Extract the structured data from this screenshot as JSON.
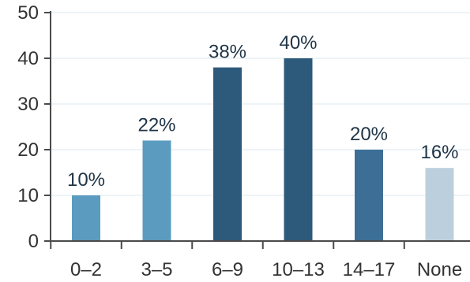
{
  "chart_data": {
    "type": "bar",
    "title": "",
    "xlabel": "",
    "ylabel": "",
    "categories": [
      "0–2",
      "3–5",
      "6–9",
      "10–13",
      "14–17",
      "None"
    ],
    "values": [
      10,
      22,
      38,
      40,
      20,
      16
    ],
    "data_labels": [
      "10%",
      "22%",
      "38%",
      "40%",
      "20%",
      "16%"
    ],
    "bar_colors": [
      "#5b9bc0",
      "#5b9bc0",
      "#2d5a7a",
      "#2d5a7a",
      "#3d6f96",
      "#bccfdd"
    ],
    "ylim": [
      0,
      50
    ],
    "yticks": [
      "0",
      "10",
      "20",
      "30",
      "40",
      "50"
    ],
    "grid": true,
    "legend": "none"
  }
}
